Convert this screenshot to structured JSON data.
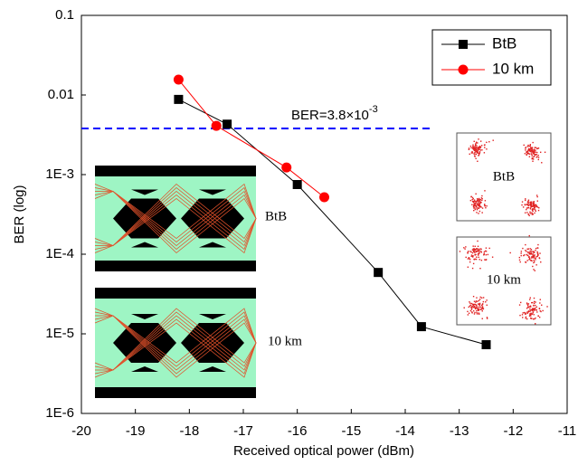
{
  "chart_data": {
    "type": "line",
    "x_label": "Received optical power (dBm)",
    "y_label": "BER (log)",
    "log_y": true,
    "xlim": [
      -20,
      -11
    ],
    "xticks": [
      -20,
      -19,
      -18,
      -17,
      -16,
      -15,
      -14,
      -13,
      -12,
      -11
    ],
    "ylim": [
      1e-06,
      0.1
    ],
    "yticks": [
      0.1,
      0.01,
      {
        "value": 0.001,
        "label": "1E-3"
      },
      {
        "value": 0.0001,
        "label": "1E-4"
      },
      {
        "value": 1e-05,
        "label": "1E-5"
      },
      {
        "value": 1e-06,
        "label": "1E-6"
      }
    ],
    "legend": "top-right",
    "series": [
      {
        "name": "BtB",
        "color": "#000000",
        "marker": "square",
        "x": [
          -18.2,
          -17.3,
          -16,
          -14.5,
          -13.7,
          -12.5
        ],
        "values": [
          0.0088,
          0.0043,
          0.00075,
          5.9e-05,
          1.23e-05,
          7.3e-06
        ]
      },
      {
        "name": "10 km",
        "color": "#ff0000",
        "marker": "circle",
        "x": [
          -18.2,
          -17.5,
          -16.2,
          -15.5
        ],
        "values": [
          0.0156,
          0.0041,
          0.00123,
          0.00052
        ]
      }
    ],
    "threshold": {
      "text": "BER=3.8×10",
      "sup": "-3",
      "value": 0.0038,
      "color": "#0000ff"
    },
    "inset_labels": {
      "eye": [
        "BtB",
        "10 km"
      ],
      "constellation": [
        "BtB",
        "10 km"
      ]
    }
  }
}
